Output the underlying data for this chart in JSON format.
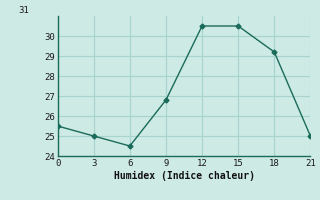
{
  "x": [
    0,
    3,
    6,
    9,
    12,
    15,
    18,
    21
  ],
  "y": [
    25.5,
    25.0,
    24.5,
    26.8,
    30.5,
    30.5,
    29.2,
    25.0
  ],
  "xlabel": "Humidex (Indice chaleur)",
  "xlim": [
    0,
    21
  ],
  "ylim": [
    24,
    31
  ],
  "xticks": [
    0,
    3,
    6,
    9,
    12,
    15,
    18,
    21
  ],
  "yticks": [
    24,
    25,
    26,
    27,
    28,
    29,
    30,
    31
  ],
  "line_color": "#1a6b5a",
  "marker": "D",
  "marker_size": 2.5,
  "bg_color": "#cdeae5",
  "grid_color": "#a8d4ce",
  "line_width": 1.0
}
